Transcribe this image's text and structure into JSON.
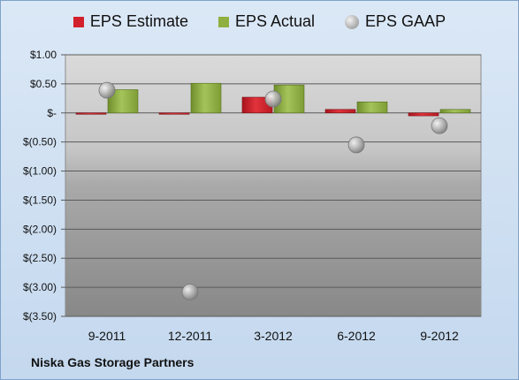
{
  "chart_data": {
    "type": "bar",
    "title": "",
    "categories": [
      "9-2011",
      "12-2011",
      "3-2012",
      "6-2012",
      "9-2012"
    ],
    "series": [
      {
        "name": "EPS Estimate",
        "kind": "bar",
        "values": [
          -0.01,
          -0.02,
          0.27,
          0.06,
          -0.05
        ],
        "color": "#d2212c"
      },
      {
        "name": "EPS Actual",
        "kind": "bar",
        "values": [
          0.4,
          0.51,
          0.48,
          0.19,
          0.06
        ],
        "color": "#8fb040"
      },
      {
        "name": "EPS GAAP",
        "kind": "marker",
        "values": [
          0.39,
          -3.08,
          0.24,
          -0.55,
          -0.22
        ],
        "color": "#b0b0b0"
      }
    ],
    "yticks": [
      1.0,
      0.5,
      0,
      -0.5,
      -1.0,
      -1.5,
      -2.0,
      -2.5,
      -3.0,
      -3.5
    ],
    "ytick_labels": [
      "$1.00",
      "$0.50",
      "$-",
      "$(0.50)",
      "$(1.00)",
      "$(1.50)",
      "$(2.00)",
      "$(2.50)",
      "$(3.00)",
      "$(3.50)"
    ],
    "ylim": [
      -3.5,
      1.0
    ],
    "xlabel": "",
    "ylabel": "",
    "legend_position": "top",
    "grid": true
  },
  "footer": {
    "company": "Niska Gas Storage Partners"
  }
}
